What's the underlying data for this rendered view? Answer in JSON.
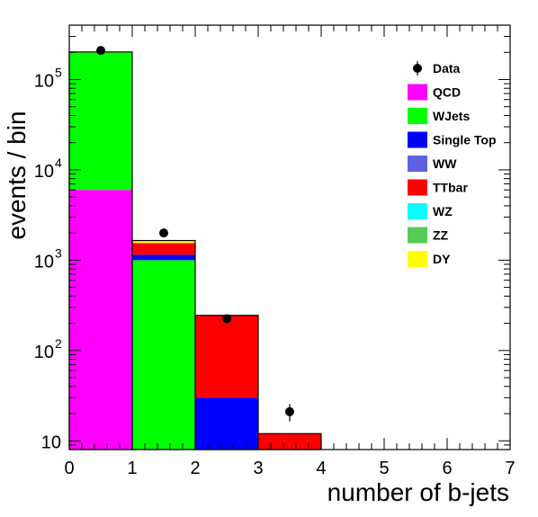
{
  "chart_data": {
    "type": "bar",
    "stacked": true,
    "y_scale": "log",
    "xlabel": "number of b-jets",
    "ylabel": "events / bin",
    "xlim": [
      0,
      7
    ],
    "ylim": [
      8,
      400000
    ],
    "x_ticks": [
      0,
      1,
      2,
      3,
      4,
      5,
      6,
      7
    ],
    "x_tick_labels": [
      "0",
      "1",
      "2",
      "3",
      "4",
      "5",
      "6",
      "7"
    ],
    "y_ticks": [
      10,
      100,
      1000,
      10000,
      100000
    ],
    "y_tick_labels": [
      {
        "base": "10",
        "exp": ""
      },
      {
        "base": "10",
        "exp": "2"
      },
      {
        "base": "10",
        "exp": "3"
      },
      {
        "base": "10",
        "exp": "4"
      },
      {
        "base": "10",
        "exp": "5"
      }
    ],
    "bins": [
      [
        0,
        1
      ],
      [
        1,
        2
      ],
      [
        2,
        3
      ],
      [
        3,
        4
      ]
    ],
    "series": [
      {
        "name": "QCD",
        "color": "#ff00ff",
        "values": [
          6000,
          0,
          0,
          0
        ]
      },
      {
        "name": "WJets",
        "color": "#00ff00",
        "values": [
          194000,
          1000,
          0,
          0
        ]
      },
      {
        "name": "Single Top",
        "color": "#0000ff",
        "values": [
          0,
          150,
          30,
          0
        ]
      },
      {
        "name": "WW",
        "color": "#6060e0",
        "values": [
          0,
          0,
          0,
          0
        ]
      },
      {
        "name": "TTbar",
        "color": "#ff0000",
        "values": [
          200,
          400,
          215,
          12
        ]
      },
      {
        "name": "WZ",
        "color": "#00ffff",
        "values": [
          0,
          0,
          0,
          0
        ]
      },
      {
        "name": "ZZ",
        "color": "#55cc55",
        "values": [
          0,
          0,
          0,
          0
        ]
      },
      {
        "name": "DY",
        "color": "#ffff00",
        "values": [
          1800,
          100,
          0,
          0
        ]
      }
    ],
    "data_points": {
      "name": "Data",
      "x": [
        0.5,
        1.5,
        2.5,
        3.5
      ],
      "y": [
        210000,
        2000,
        225,
        21
      ],
      "err": [
        460,
        45,
        15,
        4.6
      ]
    },
    "legend_position": "top-right",
    "grid": false
  }
}
